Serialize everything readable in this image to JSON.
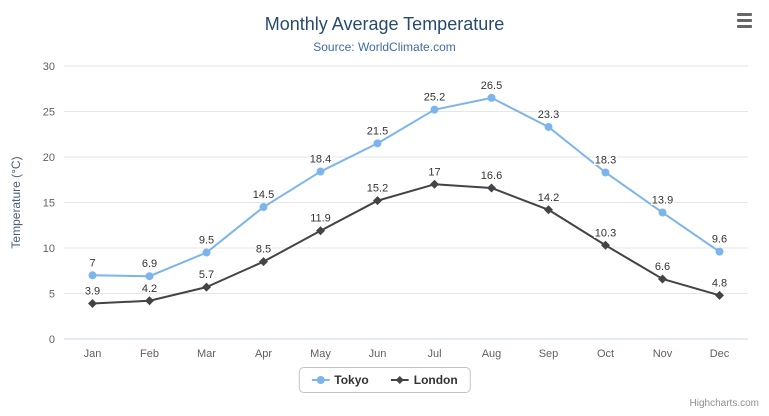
{
  "header": {
    "title": "Monthly Average Temperature",
    "subtitle": "Source: WorldClimate.com"
  },
  "credits": "Highcharts.com",
  "menu": {
    "icon": "hamburger-menu-icon"
  },
  "chart_data": {
    "type": "line",
    "title": "Monthly Average Temperature",
    "subtitle": "Source: WorldClimate.com",
    "categories": [
      "Jan",
      "Feb",
      "Mar",
      "Apr",
      "May",
      "Jun",
      "Jul",
      "Aug",
      "Sep",
      "Oct",
      "Nov",
      "Dec"
    ],
    "series": [
      {
        "name": "Tokyo",
        "color": "#7cb5ec",
        "marker": "circle",
        "values": [
          7,
          6.9,
          9.5,
          14.5,
          18.4,
          21.5,
          25.2,
          26.5,
          23.3,
          18.3,
          13.9,
          9.6
        ]
      },
      {
        "name": "London",
        "color": "#434348",
        "marker": "diamond",
        "values": [
          3.9,
          4.2,
          5.7,
          8.5,
          11.9,
          15.2,
          17,
          16.6,
          14.2,
          10.3,
          6.6,
          4.8
        ]
      }
    ],
    "xlabel": "",
    "ylabel": "Temperature (°C)",
    "ylim": [
      0,
      30
    ],
    "tick_interval": 5,
    "grid": true,
    "data_labels": true,
    "legend_position": "bottom",
    "colors": {
      "grid_line": "#e6e6e6",
      "axis_line": "#ccd6eb",
      "axis_label": "#606060",
      "axis_title": "#4a5f78",
      "data_label": "#333333"
    }
  }
}
